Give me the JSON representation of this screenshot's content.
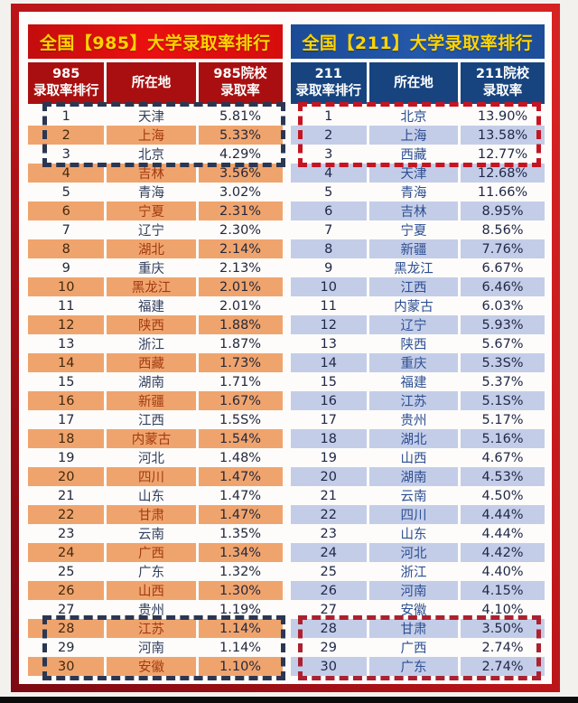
{
  "colors": {
    "accent_red": "#d90f0f",
    "accent_blue": "#1f4f9c",
    "title_text_gold": "#ffd400",
    "orange_row": "#f0a46d",
    "lavender_row": "#c4cde8",
    "highlight_navy_dash": "#2b3752",
    "highlight_red_dash": "#c51422",
    "frame_red": "#b71418"
  },
  "chart_data": [
    {
      "type": "table",
      "title": "全国【985】大学录取率排行",
      "columns": [
        "985\n录取率排行",
        "所在地",
        "985院校\n录取率"
      ],
      "highlight_top_rows": "1-3",
      "highlight_bottom_rows": "28-30",
      "rows": [
        {
          "rank": "1",
          "province": "天津",
          "rate": "5.81%"
        },
        {
          "rank": "2",
          "province": "上海",
          "rate": "5.33%"
        },
        {
          "rank": "3",
          "province": "北京",
          "rate": "4.29%"
        },
        {
          "rank": "4",
          "province": "吉林",
          "rate": "3.56%"
        },
        {
          "rank": "5",
          "province": "青海",
          "rate": "3.02%"
        },
        {
          "rank": "6",
          "province": "宁夏",
          "rate": "2.31%"
        },
        {
          "rank": "7",
          "province": "辽宁",
          "rate": "2.30%"
        },
        {
          "rank": "8",
          "province": "湖北",
          "rate": "2.14%"
        },
        {
          "rank": "9",
          "province": "重庆",
          "rate": "2.13%"
        },
        {
          "rank": "10",
          "province": "黑龙江",
          "rate": "2.01%"
        },
        {
          "rank": "11",
          "province": "福建",
          "rate": "2.01%"
        },
        {
          "rank": "12",
          "province": "陕西",
          "rate": "1.88%"
        },
        {
          "rank": "13",
          "province": "浙江",
          "rate": "1.87%"
        },
        {
          "rank": "14",
          "province": "西藏",
          "rate": "1.73%"
        },
        {
          "rank": "15",
          "province": "湖南",
          "rate": "1.71%"
        },
        {
          "rank": "16",
          "province": "新疆",
          "rate": "1.67%"
        },
        {
          "rank": "17",
          "province": "江西",
          "rate": "1.5S%"
        },
        {
          "rank": "18",
          "province": "内蒙古",
          "rate": "1.54%"
        },
        {
          "rank": "19",
          "province": "河北",
          "rate": "1.48%"
        },
        {
          "rank": "20",
          "province": "四川",
          "rate": "1.47%"
        },
        {
          "rank": "21",
          "province": "山东",
          "rate": "1.47%"
        },
        {
          "rank": "22",
          "province": "甘肃",
          "rate": "1.47%"
        },
        {
          "rank": "23",
          "province": "云南",
          "rate": "1.35%"
        },
        {
          "rank": "24",
          "province": "广西",
          "rate": "1.34%"
        },
        {
          "rank": "25",
          "province": "广东",
          "rate": "1.32%"
        },
        {
          "rank": "26",
          "province": "山西",
          "rate": "1.30%"
        },
        {
          "rank": "27",
          "province": "贵州",
          "rate": "1.19%"
        },
        {
          "rank": "28",
          "province": "江苏",
          "rate": "1.14%"
        },
        {
          "rank": "29",
          "province": "河南",
          "rate": "1.14%"
        },
        {
          "rank": "30",
          "province": "安徽",
          "rate": "1.10%"
        }
      ]
    },
    {
      "type": "table",
      "title": "全国【211】大学录取率排行",
      "columns": [
        "211\n录取率排行",
        "所在地",
        "211院校\n录取率"
      ],
      "highlight_top_rows": "1-3",
      "highlight_bottom_rows": "28-30",
      "rows": [
        {
          "rank": "1",
          "province": "北京",
          "rate": "13.90%"
        },
        {
          "rank": "2",
          "province": "上海",
          "rate": "13.58%"
        },
        {
          "rank": "3",
          "province": "西藏",
          "rate": "12.77%"
        },
        {
          "rank": "4",
          "province": "天津",
          "rate": "12.68%"
        },
        {
          "rank": "5",
          "province": "青海",
          "rate": "11.66%"
        },
        {
          "rank": "6",
          "province": "吉林",
          "rate": "8.95%"
        },
        {
          "rank": "7",
          "province": "宁夏",
          "rate": "8.56%"
        },
        {
          "rank": "8",
          "province": "新疆",
          "rate": "7.76%"
        },
        {
          "rank": "9",
          "province": "黑龙江",
          "rate": "6.67%"
        },
        {
          "rank": "10",
          "province": "江西",
          "rate": "6.46%"
        },
        {
          "rank": "11",
          "province": "内蒙古",
          "rate": "6.03%"
        },
        {
          "rank": "12",
          "province": "辽宁",
          "rate": "5.93%"
        },
        {
          "rank": "13",
          "province": "陕西",
          "rate": "5.67%"
        },
        {
          "rank": "14",
          "province": "重庆",
          "rate": "5.3S%"
        },
        {
          "rank": "15",
          "province": "福建",
          "rate": "5.37%"
        },
        {
          "rank": "16",
          "province": "江苏",
          "rate": "5.1S%"
        },
        {
          "rank": "17",
          "province": "贵州",
          "rate": "5.17%"
        },
        {
          "rank": "18",
          "province": "湖北",
          "rate": "5.16%"
        },
        {
          "rank": "19",
          "province": "山西",
          "rate": "4.67%"
        },
        {
          "rank": "20",
          "province": "湖南",
          "rate": "4.53%"
        },
        {
          "rank": "21",
          "province": "云南",
          "rate": "4.50%"
        },
        {
          "rank": "22",
          "province": "四川",
          "rate": "4.44%"
        },
        {
          "rank": "23",
          "province": "山东",
          "rate": "4.44%"
        },
        {
          "rank": "24",
          "province": "河北",
          "rate": "4.42%"
        },
        {
          "rank": "25",
          "province": "浙江",
          "rate": "4.40%"
        },
        {
          "rank": "26",
          "province": "河南",
          "rate": "4.15%"
        },
        {
          "rank": "27",
          "province": "安徽",
          "rate": "4.10%"
        },
        {
          "rank": "28",
          "province": "甘肃",
          "rate": "3.50%"
        },
        {
          "rank": "29",
          "province": "广西",
          "rate": "2.74%"
        },
        {
          "rank": "30",
          "province": "广东",
          "rate": "2.74%"
        }
      ]
    }
  ]
}
